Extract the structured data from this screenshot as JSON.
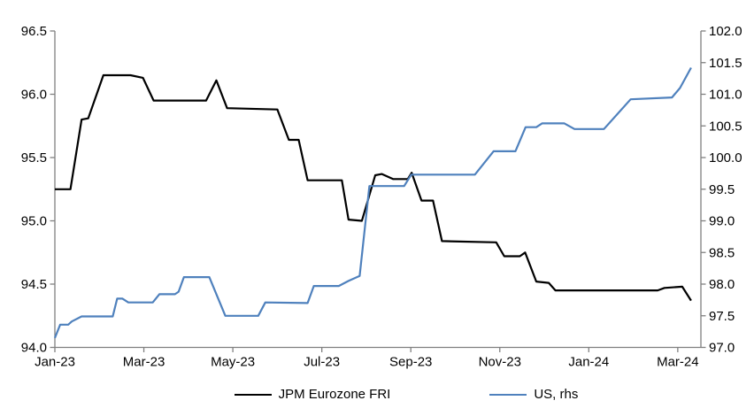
{
  "chart_data": {
    "type": "line",
    "title": "",
    "xlabel": "",
    "ylabel_left": "",
    "ylabel_right": "",
    "grid": false,
    "legend_position": "bottom",
    "background_color": "#ffffff",
    "axis_color": "#808080",
    "text_color": "#000000",
    "x_axis": {
      "unit": "months since Jan-2023",
      "range": [
        0,
        14.52
      ],
      "tick_values": [
        0,
        2,
        4,
        6,
        8,
        10,
        12,
        14
      ],
      "tick_labels": [
        "Jan-23",
        "Mar-23",
        "May-23",
        "Jul-23",
        "Sep-23",
        "Nov-23",
        "Jan-24",
        "Mar-24"
      ]
    },
    "y_axis_left": {
      "range": [
        94.0,
        96.5
      ],
      "tick_values": [
        96.5,
        96.0,
        95.5,
        95.0,
        94.5,
        94.0
      ],
      "tick_labels": [
        "96.5",
        "96.0",
        "95.5",
        "95.0",
        "94.5",
        "94.0"
      ]
    },
    "y_axis_right": {
      "range": [
        97.0,
        102.0
      ],
      "tick_values": [
        102.0,
        101.5,
        101.0,
        100.5,
        100.0,
        99.5,
        99.0,
        98.5,
        98.0,
        97.5,
        97.0
      ],
      "tick_labels": [
        "102.0",
        "101.5",
        "101.0",
        "100.5",
        "100.0",
        "99.5",
        "99.0",
        "98.5",
        "98.0",
        "97.5",
        "97.0"
      ]
    },
    "series": [
      {
        "name": "JPM Eurozone FRI",
        "slug": "jpm-eurozone-fri",
        "axis": "left",
        "color": "#000000",
        "points": [
          [
            0.0,
            95.25
          ],
          [
            0.35,
            95.25
          ],
          [
            0.6,
            95.8
          ],
          [
            0.75,
            95.81
          ],
          [
            1.09,
            96.15
          ],
          [
            1.7,
            96.15
          ],
          [
            1.98,
            96.13
          ],
          [
            2.22,
            95.95
          ],
          [
            3.4,
            95.95
          ],
          [
            3.63,
            96.11
          ],
          [
            3.87,
            95.89
          ],
          [
            5.0,
            95.88
          ],
          [
            5.26,
            95.64
          ],
          [
            5.48,
            95.64
          ],
          [
            5.68,
            95.32
          ],
          [
            6.45,
            95.32
          ],
          [
            6.6,
            95.01
          ],
          [
            6.9,
            95.0
          ],
          [
            7.2,
            95.36
          ],
          [
            7.35,
            95.37
          ],
          [
            7.6,
            95.33
          ],
          [
            7.93,
            95.33
          ],
          [
            8.02,
            95.38
          ],
          [
            8.24,
            95.16
          ],
          [
            8.5,
            95.16
          ],
          [
            8.7,
            94.84
          ],
          [
            9.92,
            94.83
          ],
          [
            10.1,
            94.72
          ],
          [
            10.45,
            94.72
          ],
          [
            10.57,
            94.75
          ],
          [
            10.82,
            94.52
          ],
          [
            11.1,
            94.51
          ],
          [
            11.25,
            94.45
          ],
          [
            13.55,
            94.45
          ],
          [
            13.7,
            94.47
          ],
          [
            14.1,
            94.48
          ],
          [
            14.3,
            94.37
          ]
        ]
      },
      {
        "name": "US, rhs",
        "slug": "us-rhs",
        "axis": "right",
        "color": "#4F81BD",
        "points": [
          [
            0.0,
            97.15
          ],
          [
            0.12,
            97.36
          ],
          [
            0.3,
            97.36
          ],
          [
            0.38,
            97.41
          ],
          [
            0.6,
            97.49
          ],
          [
            1.3,
            97.49
          ],
          [
            1.4,
            97.77
          ],
          [
            1.52,
            97.77
          ],
          [
            1.65,
            97.71
          ],
          [
            2.2,
            97.71
          ],
          [
            2.35,
            97.84
          ],
          [
            2.7,
            97.84
          ],
          [
            2.78,
            97.88
          ],
          [
            2.9,
            98.11
          ],
          [
            3.47,
            98.11
          ],
          [
            3.83,
            97.5
          ],
          [
            4.57,
            97.5
          ],
          [
            4.73,
            97.71
          ],
          [
            5.68,
            97.7
          ],
          [
            5.82,
            97.97
          ],
          [
            6.38,
            97.97
          ],
          [
            6.6,
            98.05
          ],
          [
            6.85,
            98.13
          ],
          [
            7.07,
            99.55
          ],
          [
            7.85,
            99.55
          ],
          [
            8.01,
            99.73
          ],
          [
            9.44,
            99.73
          ],
          [
            9.86,
            100.1
          ],
          [
            10.35,
            100.1
          ],
          [
            10.58,
            100.48
          ],
          [
            10.82,
            100.48
          ],
          [
            10.95,
            100.54
          ],
          [
            11.45,
            100.54
          ],
          [
            11.68,
            100.45
          ],
          [
            12.34,
            100.45
          ],
          [
            12.94,
            100.92
          ],
          [
            13.87,
            100.95
          ],
          [
            14.05,
            101.1
          ],
          [
            14.3,
            101.42
          ]
        ]
      }
    ]
  },
  "legend": {
    "items": [
      {
        "label": "JPM Eurozone FRI",
        "color": "#000000"
      },
      {
        "label": "US, rhs",
        "color": "#4F81BD"
      }
    ]
  }
}
